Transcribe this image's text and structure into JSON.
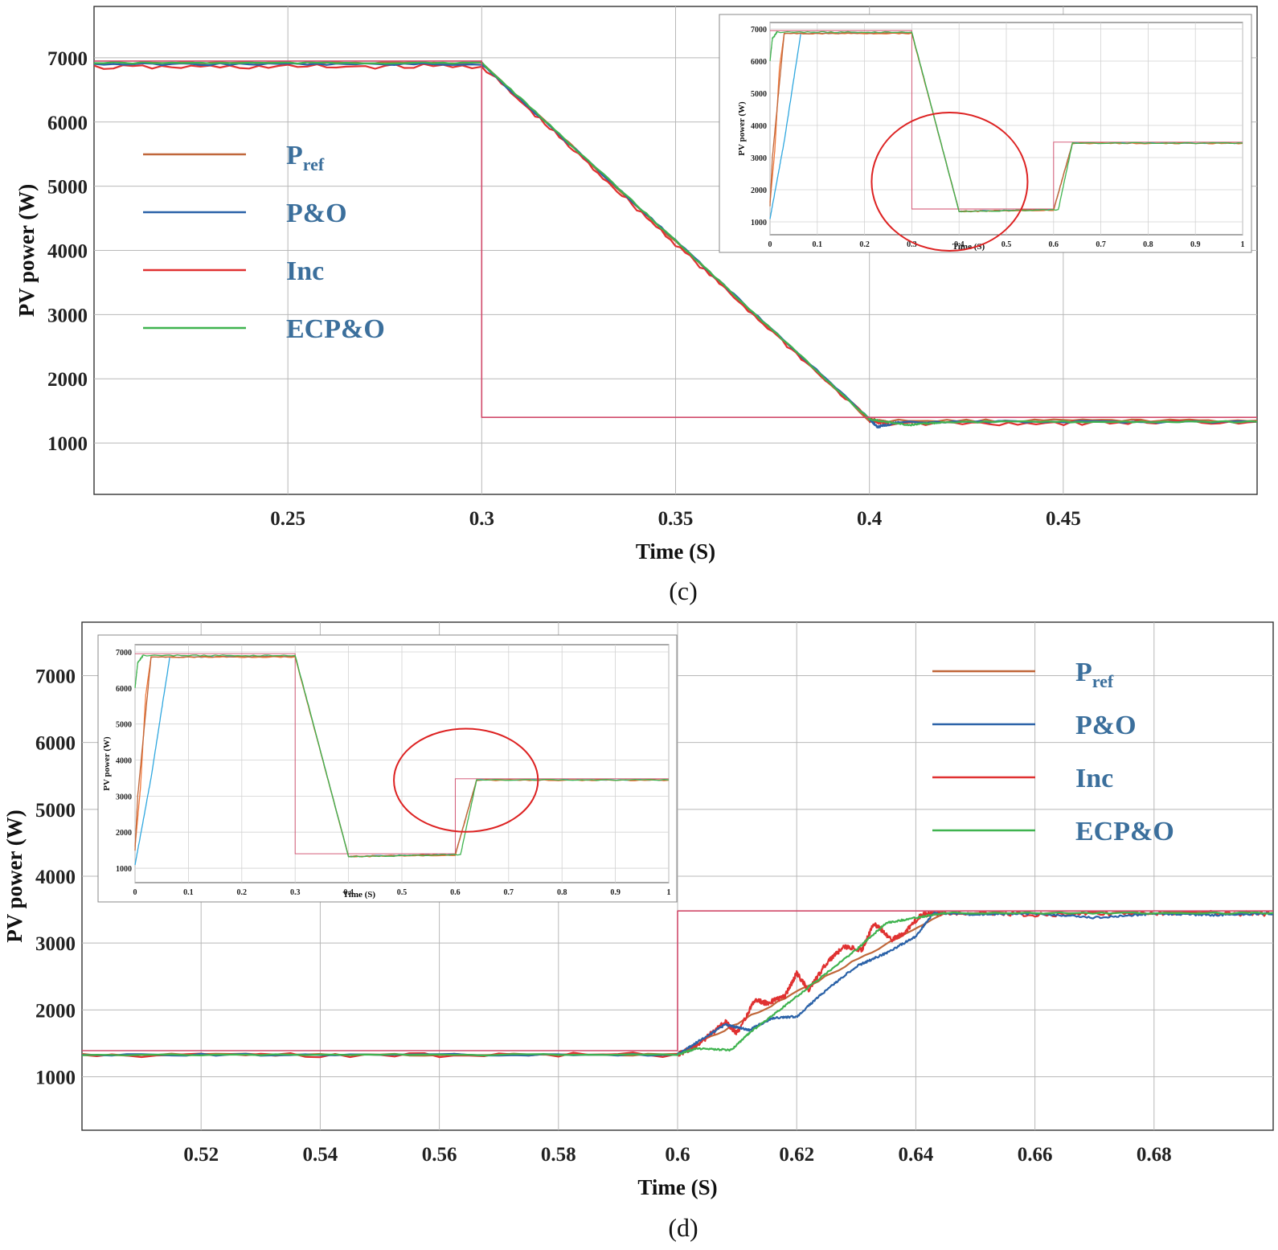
{
  "colors": {
    "pref": "#c0673a",
    "po": "#2b62a8",
    "inc": "#e03131",
    "ecpo": "#3fb34f",
    "po_inset": "#2fa7df",
    "inc_inset": "#f0783a",
    "ref_step": "#d04a6a",
    "circle": "#dd2222",
    "grid": "#b8b8b8",
    "legend_text": "#3b6f9c"
  },
  "chart_data": [
    {
      "id": "c",
      "type": "line",
      "panel_label": "(c)",
      "xlabel": "Time  (S)",
      "ylabel": "PV  power  (W)",
      "xlim": [
        0.2,
        0.5
      ],
      "ylim": [
        200,
        7800
      ],
      "xticks": [
        0.25,
        0.3,
        0.35,
        0.4,
        0.45
      ],
      "xtick_labels": [
        "0.25",
        "0.3",
        "0.35",
        "0.4",
        "0.45"
      ],
      "yticks": [
        1000,
        2000,
        3000,
        4000,
        5000,
        6000,
        7000
      ],
      "ytick_labels": [
        "1000",
        "2000",
        "3000",
        "4000",
        "5000",
        "6000",
        "7000"
      ],
      "legend": {
        "position": "upper-left",
        "entries": [
          {
            "key": "pref",
            "label": "P",
            "sub": "ref"
          },
          {
            "key": "po",
            "label": "P&O",
            "sub": ""
          },
          {
            "key": "inc",
            "label": "Inc",
            "sub": ""
          },
          {
            "key": "ecpo",
            "label": "ECP&O",
            "sub": ""
          }
        ]
      },
      "series": [
        {
          "key": "ref_step",
          "name": "Reference step",
          "x": [
            0.2,
            0.3,
            0.3,
            0.5
          ],
          "y": [
            6950,
            6950,
            1400,
            1400
          ]
        },
        {
          "key": "pref",
          "name": "Pref",
          "x": [
            0.2,
            0.3,
            0.4,
            0.5
          ],
          "y": [
            6920,
            6920,
            1350,
            1350
          ]
        },
        {
          "key": "po",
          "name": "P&O",
          "x": [
            0.2,
            0.3,
            0.35,
            0.4,
            0.402,
            0.408,
            0.5
          ],
          "y": [
            6900,
            6900,
            4150,
            1380,
            1250,
            1330,
            1330
          ]
        },
        {
          "key": "inc",
          "name": "Inc",
          "x": [
            0.2,
            0.3,
            0.35,
            0.4,
            0.405,
            0.5
          ],
          "y": [
            6850,
            6870,
            4100,
            1360,
            1300,
            1330
          ]
        },
        {
          "key": "ecpo",
          "name": "ECP&O",
          "x": [
            0.2,
            0.3,
            0.35,
            0.4,
            0.41,
            0.42,
            0.5
          ],
          "y": [
            6920,
            6920,
            4150,
            1370,
            1280,
            1330,
            1330
          ]
        }
      ],
      "inset": {
        "position": "top-right",
        "xlabel": "Time  (S)",
        "ylabel": "PV  power  (W)",
        "xlim": [
          0,
          1
        ],
        "ylim": [
          600,
          7200
        ],
        "xtick_labels": [
          "0",
          "0.1",
          "0.2",
          "0.3",
          "0.4",
          "0.5",
          "0.6",
          "0.7",
          "0.8",
          "0.9",
          "1"
        ],
        "ytick_labels": [
          "1000",
          "2000",
          "3000",
          "4000",
          "5000",
          "6000",
          "7000"
        ],
        "highlight": "ellipse around 0.3–0.6 s transition",
        "series": [
          {
            "key": "ref_step",
            "x": [
              0,
              0.3,
              0.3,
              0.6,
              0.6,
              1.0
            ],
            "y": [
              6950,
              6950,
              1400,
              1400,
              3480,
              3480
            ]
          },
          {
            "key": "pref",
            "x": [
              0,
              0.005,
              0.03,
              0.3,
              0.4,
              0.6,
              0.64,
              1.0
            ],
            "y": [
              1500,
              3000,
              6850,
              6880,
              1330,
              1380,
              3450,
              3450
            ]
          },
          {
            "key": "inc",
            "x": [
              0,
              0.01,
              0.02,
              0.03,
              0.3,
              0.4,
              0.6,
              0.64,
              1.0
            ],
            "y": [
              1600,
              3200,
              5800,
              6850,
              6860,
              1320,
              1360,
              3440,
              3440
            ]
          },
          {
            "key": "po",
            "x": [
              0,
              0.03,
              0.065,
              0.3,
              0.4,
              0.6,
              0.64,
              1.0
            ],
            "y": [
              1100,
              3500,
              6850,
              6880,
              1330,
              1380,
              3450,
              3450
            ]
          },
          {
            "key": "ecpo",
            "x": [
              0,
              0.005,
              0.015,
              0.3,
              0.4,
              0.61,
              0.64,
              1.0
            ],
            "y": [
              6000,
              6700,
              6900,
              6900,
              1320,
              1380,
              3450,
              3450
            ]
          }
        ],
        "ellipse": {
          "cx": 0.38,
          "cy": 2250,
          "rx": 0.165,
          "ry": 2150
        }
      }
    },
    {
      "id": "d",
      "type": "line",
      "panel_label": "(d)",
      "xlabel": "Time  (S)",
      "ylabel": "PV  power  (W)",
      "xlim": [
        0.5,
        0.7
      ],
      "ylim": [
        200,
        7800
      ],
      "xticks": [
        0.52,
        0.54,
        0.56,
        0.58,
        0.6,
        0.62,
        0.64,
        0.66,
        0.68
      ],
      "xtick_labels": [
        "0.52",
        "0.54",
        "0.56",
        "0.58",
        "0.6",
        "0.62",
        "0.64",
        "0.66",
        "0.68"
      ],
      "yticks": [
        1000,
        2000,
        3000,
        4000,
        5000,
        6000,
        7000
      ],
      "ytick_labels": [
        "1000",
        "2000",
        "3000",
        "4000",
        "5000",
        "6000",
        "7000"
      ],
      "legend": {
        "position": "upper-right",
        "entries": [
          {
            "key": "pref",
            "label": "P",
            "sub": "ref"
          },
          {
            "key": "po",
            "label": "P&O",
            "sub": ""
          },
          {
            "key": "inc",
            "label": "Inc",
            "sub": ""
          },
          {
            "key": "ecpo",
            "label": "ECP&O",
            "sub": ""
          }
        ]
      },
      "series": [
        {
          "key": "ref_step",
          "name": "Reference step",
          "x": [
            0.5,
            0.6,
            0.6,
            0.7
          ],
          "y": [
            1390,
            1390,
            3480,
            3480
          ]
        },
        {
          "key": "pref",
          "name": "Pref",
          "x": [
            0.5,
            0.6,
            0.645,
            0.7
          ],
          "y": [
            1330,
            1330,
            3450,
            3450
          ]
        },
        {
          "key": "po",
          "name": "P&O",
          "x": [
            0.5,
            0.6,
            0.603,
            0.608,
            0.612,
            0.616,
            0.62,
            0.625,
            0.63,
            0.635,
            0.64,
            0.643,
            0.65,
            0.66,
            0.67,
            0.68,
            0.69,
            0.7
          ],
          "y": [
            1330,
            1330,
            1500,
            1780,
            1700,
            1880,
            1900,
            2300,
            2650,
            2850,
            3100,
            3450,
            3430,
            3440,
            3380,
            3440,
            3420,
            3440
          ]
        },
        {
          "key": "inc",
          "name": "Inc",
          "x": [
            0.5,
            0.6,
            0.603,
            0.608,
            0.61,
            0.613,
            0.615,
            0.618,
            0.62,
            0.622,
            0.625,
            0.628,
            0.631,
            0.633,
            0.636,
            0.638,
            0.641,
            0.645,
            0.66,
            0.68,
            0.7
          ],
          "y": [
            1320,
            1330,
            1450,
            1820,
            1650,
            2150,
            2100,
            2200,
            2550,
            2300,
            2700,
            2950,
            2900,
            3300,
            3050,
            3150,
            3430,
            3450,
            3430,
            3450,
            3440
          ]
        },
        {
          "key": "ecpo",
          "name": "ECP&O",
          "x": [
            0.5,
            0.6,
            0.603,
            0.609,
            0.612,
            0.62,
            0.63,
            0.635,
            0.64,
            0.645,
            0.7
          ],
          "y": [
            1330,
            1330,
            1420,
            1400,
            1650,
            2200,
            2900,
            3300,
            3380,
            3450,
            3450
          ]
        }
      ],
      "inset": {
        "position": "top-left",
        "xlabel": "Time  (S)",
        "ylabel": "PV  power  (W)",
        "xlim": [
          0,
          1
        ],
        "ylim": [
          600,
          7200
        ],
        "xtick_labels": [
          "0",
          "0.1",
          "0.2",
          "0.3",
          "0.4",
          "0.5",
          "0.6",
          "0.7",
          "0.8",
          "0.9",
          "1"
        ],
        "ytick_labels": [
          "1000",
          "2000",
          "3000",
          "4000",
          "5000",
          "6000",
          "7000"
        ],
        "highlight": "ellipse around 0.6–0.7 s step-up",
        "series": [
          {
            "key": "ref_step",
            "x": [
              0,
              0.3,
              0.3,
              0.6,
              0.6,
              1.0
            ],
            "y": [
              6950,
              6950,
              1400,
              1400,
              3480,
              3480
            ]
          },
          {
            "key": "pref",
            "x": [
              0,
              0.005,
              0.03,
              0.3,
              0.4,
              0.6,
              0.64,
              1.0
            ],
            "y": [
              1500,
              3000,
              6850,
              6880,
              1330,
              1380,
              3450,
              3450
            ]
          },
          {
            "key": "inc",
            "x": [
              0,
              0.01,
              0.02,
              0.03,
              0.3,
              0.4,
              0.6,
              0.64,
              1.0
            ],
            "y": [
              1600,
              3200,
              5800,
              6850,
              6860,
              1320,
              1360,
              3440,
              3440
            ]
          },
          {
            "key": "po",
            "x": [
              0,
              0.03,
              0.065,
              0.3,
              0.4,
              0.6,
              0.64,
              1.0
            ],
            "y": [
              1100,
              3500,
              6850,
              6880,
              1330,
              1380,
              3450,
              3450
            ]
          },
          {
            "key": "ecpo",
            "x": [
              0,
              0.005,
              0.015,
              0.3,
              0.4,
              0.61,
              0.64,
              1.0
            ],
            "y": [
              6000,
              6700,
              6900,
              6900,
              1320,
              1380,
              3450,
              3450
            ]
          }
        ],
        "ellipse": {
          "cx": 0.62,
          "cy": 3440,
          "rx": 0.135,
          "ry": 1430
        }
      }
    }
  ]
}
